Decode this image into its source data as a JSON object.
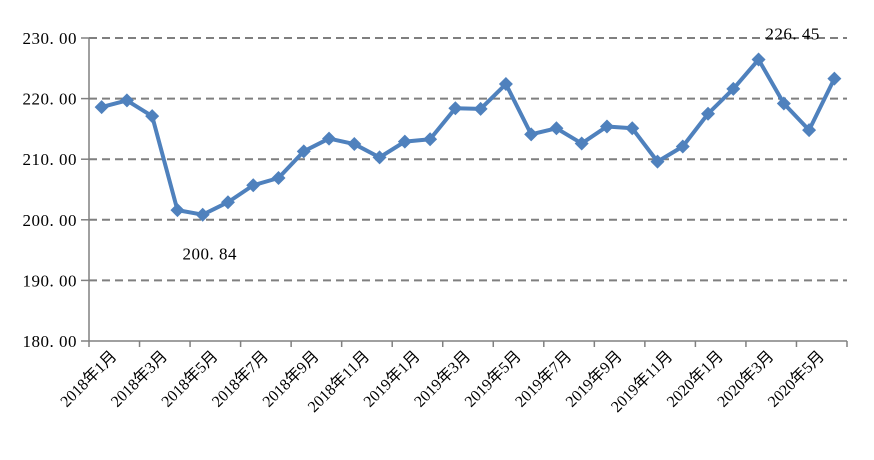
{
  "chart_data": {
    "type": "line",
    "title": "",
    "legend": "none",
    "categories": [
      "2018年1月",
      "2018年2月",
      "2018年3月",
      "2018年4月",
      "2018年5月",
      "2018年6月",
      "2018年7月",
      "2018年8月",
      "2018年9月",
      "2018年10月",
      "2018年11月",
      "2018年12月",
      "2019年1月",
      "2019年2月",
      "2019年3月",
      "2019年4月",
      "2019年5月",
      "2019年6月",
      "2019年7月",
      "2019年8月",
      "2019年9月",
      "2019年10月",
      "2019年11月",
      "2019年12月",
      "2020年1月",
      "2020年2月",
      "2020年3月",
      "2020年4月",
      "2020年5月",
      "2020年6月"
    ],
    "visible_x_tick_labels": [
      "2018年1月",
      "2018年3月",
      "2018年5月",
      "2018年7月",
      "2018年9月",
      "2018年11月",
      "2019年1月",
      "2019年3月",
      "2019年5月",
      "2019年7月",
      "2019年9月",
      "2019年11月",
      "2020年1月",
      "2020年3月",
      "2020年5月"
    ],
    "x_label_every_n_categories": 2,
    "series": [
      {
        "values": [
          218.6,
          219.7,
          217.1,
          201.6,
          200.84,
          202.9,
          205.7,
          206.9,
          211.3,
          213.4,
          212.5,
          210.3,
          212.9,
          213.3,
          218.4,
          218.3,
          222.4,
          214.1,
          215.1,
          212.6,
          215.4,
          215.1,
          209.6,
          212.1,
          217.5,
          221.6,
          226.45,
          219.2,
          214.8,
          223.3
        ],
        "marker": "diamond"
      }
    ],
    "ylim": [
      180,
      230
    ],
    "y_tick_interval": 10,
    "y_tick_labels": [
      "180.00",
      "190.00",
      "200.00",
      "210.00",
      "220.00",
      "230.00"
    ],
    "grid": {
      "horizontal": true,
      "style": "dashed"
    },
    "annotations": [
      {
        "text": "200.84",
        "category_index": 4,
        "placement": "below"
      },
      {
        "text": "226.45",
        "category_index": 26,
        "placement": "above"
      }
    ],
    "colors": {
      "line": "#4F81BD",
      "marker": "#4F81BD",
      "gridline": "#7F7F7F",
      "axis": "#808080",
      "text": "#000000",
      "background": "#FFFFFF"
    }
  }
}
